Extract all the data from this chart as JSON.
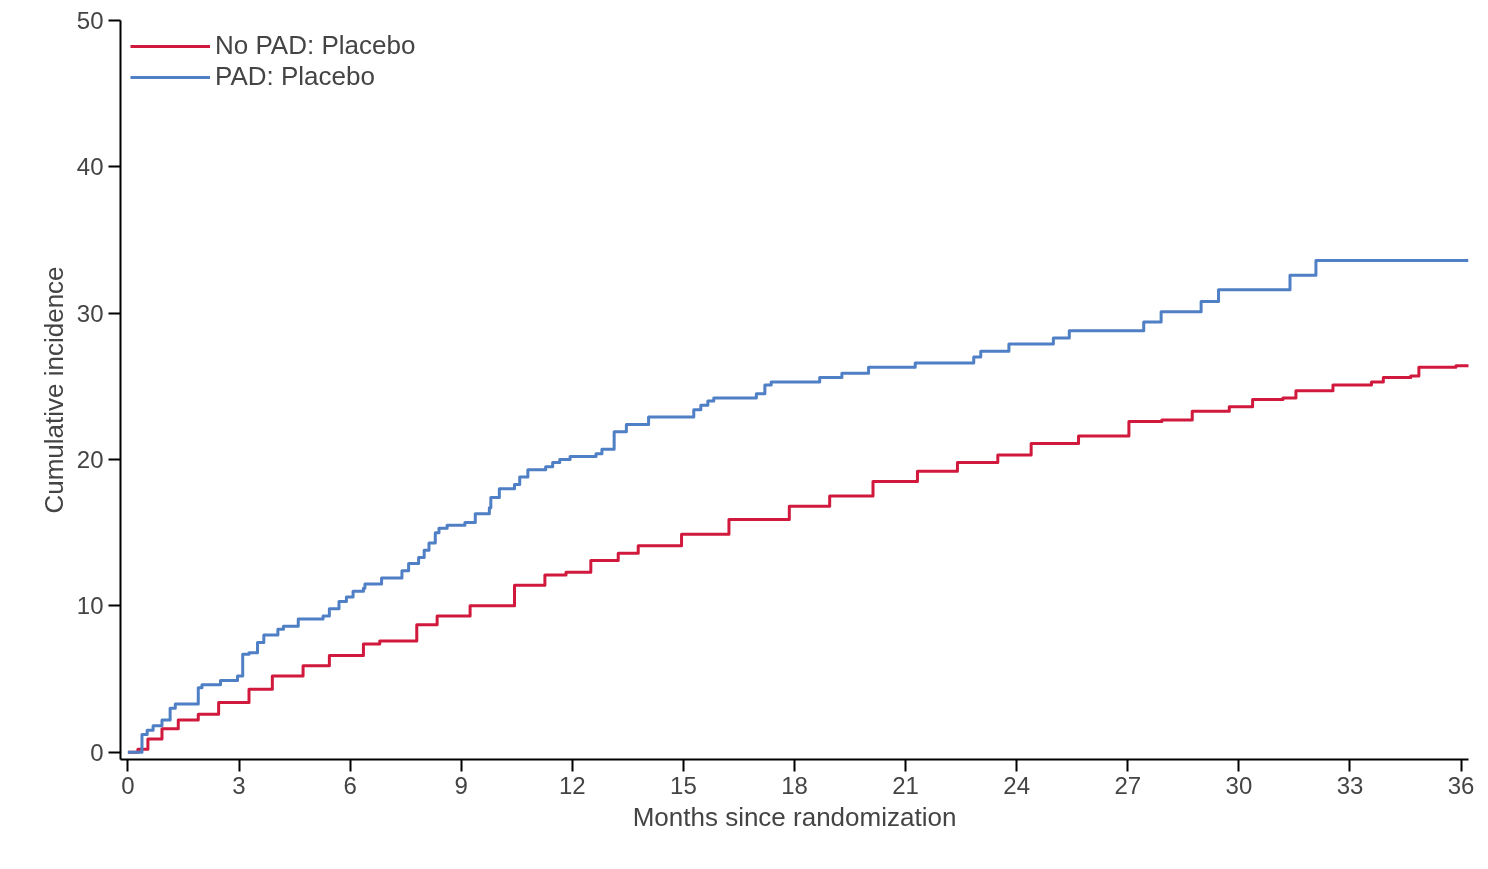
{
  "chart_data": {
    "type": "step",
    "xlabel": "Months since randomization",
    "ylabel": "Cumulative incidence",
    "xlim": [
      -0.2,
      36.2
    ],
    "ylim": [
      -0.5,
      50
    ],
    "xticks": [
      0,
      3,
      6,
      9,
      12,
      15,
      18,
      21,
      24,
      27,
      30,
      33,
      36
    ],
    "yticks": [
      0,
      10,
      20,
      30,
      40,
      50
    ],
    "grid": false,
    "legend": "top left",
    "series": [
      {
        "name": "No PAD: Placebo",
        "color": "#d0193c",
        "x": [
          0,
          0.27,
          0.54,
          0.92,
          1.36,
          1.9,
          2.45,
          3.27,
          3.9,
          4.73,
          5.44,
          6.36,
          6.8,
          7.8,
          8.35,
          9.24,
          10.44,
          11.26,
          11.83,
          12.5,
          13.24,
          13.78,
          14.95,
          16.23,
          17.86,
          18.95,
          20.12,
          21.32,
          22.4,
          23.49,
          24.39,
          25.67,
          27.03,
          27.92,
          28.74,
          29.74,
          30.37,
          31.19,
          31.54,
          32.54,
          33.58,
          33.9,
          34.64,
          34.86,
          35.86,
          36.2
        ],
        "values": [
          0,
          0.2,
          0.9,
          1.6,
          2.2,
          2.6,
          3.4,
          4.3,
          5.2,
          5.9,
          6.6,
          7.4,
          7.6,
          8.7,
          9.3,
          10.0,
          11.4,
          12.1,
          12.3,
          13.1,
          13.6,
          14.1,
          14.9,
          15.9,
          16.8,
          17.5,
          18.5,
          19.2,
          19.8,
          20.3,
          21.1,
          21.6,
          22.6,
          22.7,
          23.3,
          23.6,
          24.1,
          24.2,
          24.7,
          25.1,
          25.3,
          25.6,
          25.7,
          26.3,
          26.4,
          26.5
        ]
      },
      {
        "name": "PAD: Placebo",
        "color": "#4f7fc4",
        "x": [
          0,
          0.38,
          0.52,
          0.68,
          0.92,
          1.14,
          1.28,
          1.9,
          2.0,
          2.5,
          2.96,
          3.1,
          3.27,
          3.5,
          3.67,
          4.05,
          4.2,
          4.6,
          5.27,
          5.44,
          5.7,
          5.9,
          6.08,
          6.36,
          6.4,
          6.85,
          7.4,
          7.58,
          7.85,
          8.0,
          8.13,
          8.3,
          8.4,
          8.62,
          9.1,
          9.38,
          9.76,
          9.8,
          10.03,
          10.44,
          10.58,
          10.8,
          11.28,
          11.47,
          11.66,
          11.94,
          12.64,
          12.8,
          13.13,
          13.46,
          14.06,
          15.28,
          15.47,
          15.66,
          15.82,
          16.97,
          17.2,
          17.37,
          18.68,
          19.28,
          20.0,
          21.26,
          22.84,
          23.03,
          23.79,
          24.99,
          25.42,
          27.43,
          27.9,
          28.98,
          29.45,
          31.38,
          32.08,
          36.2
        ],
        "values": [
          0,
          1.2,
          1.5,
          1.8,
          2.2,
          3.0,
          3.3,
          4.4,
          4.6,
          4.9,
          5.2,
          6.7,
          6.8,
          7.5,
          8.0,
          8.4,
          8.6,
          9.1,
          9.3,
          9.8,
          10.3,
          10.6,
          11.0,
          11.2,
          11.5,
          11.9,
          12.4,
          12.9,
          13.3,
          13.8,
          14.3,
          15.0,
          15.3,
          15.5,
          15.7,
          16.3,
          16.7,
          17.4,
          18.0,
          18.3,
          18.8,
          19.3,
          19.5,
          19.8,
          20.0,
          20.2,
          20.4,
          20.7,
          21.9,
          22.4,
          22.9,
          23.4,
          23.7,
          24.0,
          24.2,
          24.5,
          25.1,
          25.3,
          25.6,
          25.9,
          26.3,
          26.6,
          27.0,
          27.4,
          27.9,
          28.3,
          28.8,
          29.4,
          30.1,
          30.8,
          31.6,
          32.6,
          33.6,
          33.6
        ]
      }
    ]
  }
}
